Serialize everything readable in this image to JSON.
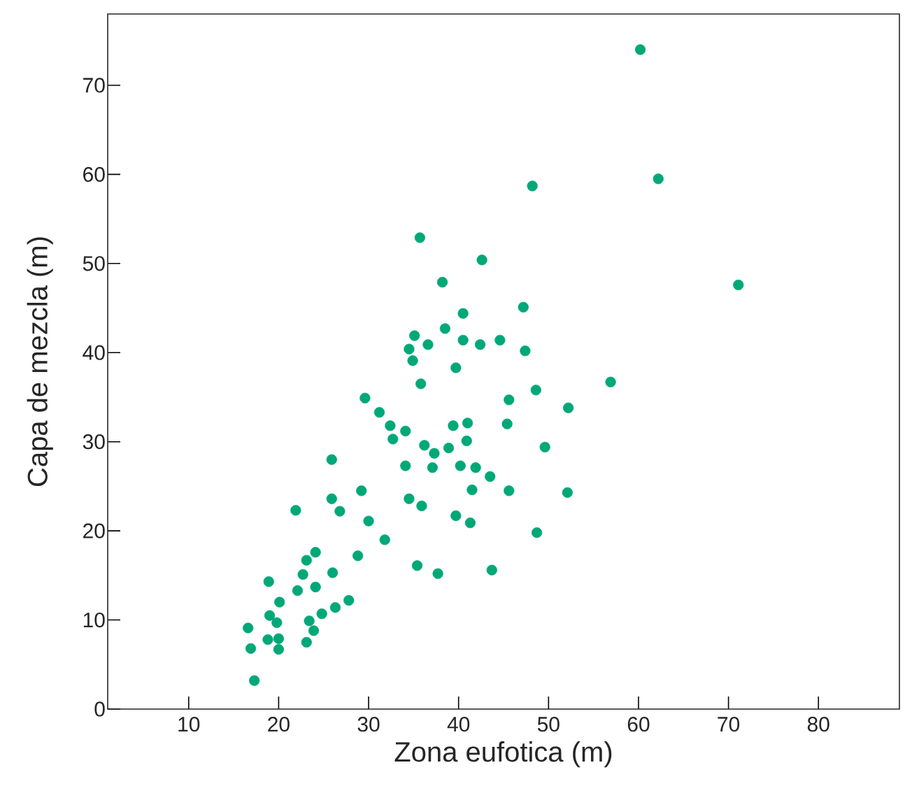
{
  "chart_data": {
    "type": "scatter",
    "xlabel": "Zona eufotica (m)",
    "ylabel": "Capa de mezcla (m)",
    "xlim": [
      1,
      89
    ],
    "ylim": [
      0,
      78
    ],
    "xticks": [
      10,
      20,
      30,
      40,
      50,
      60,
      70,
      80
    ],
    "yticks": [
      0,
      10,
      20,
      30,
      40,
      50,
      60,
      70
    ],
    "grid": false,
    "series": [
      {
        "color": "#00a878",
        "x": [
          60.2,
          48.2,
          62.2,
          35.7,
          42.6,
          38.2,
          71.1,
          40.5,
          47.2,
          38.5,
          35.1,
          36.6,
          40.5,
          42.4,
          44.6,
          34.5,
          47.4,
          34.9,
          39.7,
          35.8,
          56.9,
          48.6,
          29.6,
          45.6,
          52.2,
          31.2,
          32.4,
          34.1,
          39.4,
          41.0,
          45.4,
          32.7,
          40.9,
          36.2,
          37.3,
          38.9,
          49.6,
          25.9,
          34.1,
          37.1,
          40.2,
          41.9,
          43.5,
          29.2,
          41.5,
          45.6,
          52.1,
          25.9,
          34.5,
          35.9,
          26.8,
          21.9,
          39.7,
          41.3,
          30.0,
          48.7,
          31.8,
          28.8,
          24.1,
          23.1,
          35.4,
          43.7,
          37.7,
          26.0,
          22.7,
          18.9,
          24.1,
          22.1,
          27.8,
          26.3,
          20.1,
          24.8,
          19.0,
          23.4,
          19.8,
          16.6,
          23.9,
          18.8,
          20.0,
          23.1,
          16.9,
          20.0,
          17.3
        ],
        "values": [
          74.0,
          58.7,
          59.5,
          52.9,
          50.4,
          47.9,
          47.6,
          44.4,
          45.1,
          42.7,
          41.9,
          40.9,
          41.4,
          40.9,
          41.4,
          40.4,
          40.2,
          39.1,
          38.3,
          36.5,
          36.7,
          35.8,
          34.9,
          34.7,
          33.8,
          33.3,
          31.8,
          31.2,
          31.8,
          32.1,
          32.0,
          30.3,
          30.1,
          29.6,
          28.7,
          29.3,
          29.4,
          28.0,
          27.3,
          27.1,
          27.3,
          27.1,
          26.1,
          24.5,
          24.6,
          24.5,
          24.3,
          23.6,
          23.6,
          22.8,
          22.2,
          22.3,
          21.7,
          20.9,
          21.1,
          19.8,
          19.0,
          17.2,
          17.6,
          16.7,
          16.1,
          15.6,
          15.2,
          15.3,
          15.1,
          14.3,
          13.7,
          13.3,
          12.2,
          11.4,
          12.0,
          10.7,
          10.5,
          9.9,
          9.7,
          9.1,
          8.8,
          7.8,
          7.9,
          7.5,
          6.8,
          6.7,
          3.2
        ]
      }
    ]
  }
}
